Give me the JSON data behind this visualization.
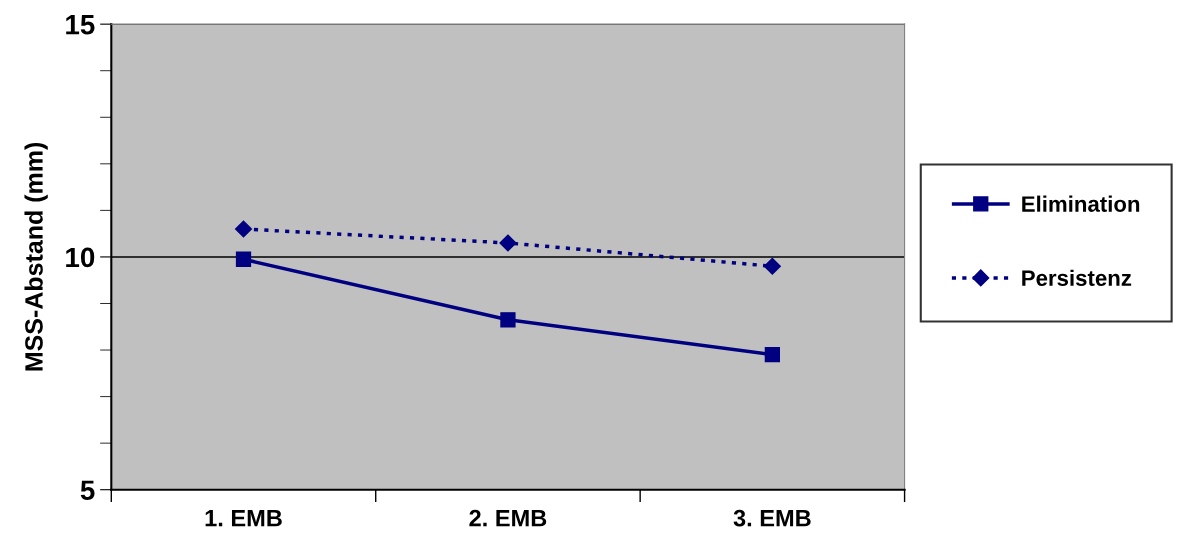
{
  "chart_data": {
    "type": "line",
    "ylabel": "MSS-Abstand (mm)",
    "categories": [
      "1. EMB",
      "2. EMB",
      "3. EMB"
    ],
    "series": [
      {
        "name": "Elimination",
        "color": "#000080",
        "values": [
          9.95,
          8.65,
          7.9
        ],
        "marker": "square",
        "line_style": "solid"
      },
      {
        "name": "Persistenz",
        "color": "#000080",
        "values": [
          10.6,
          10.3,
          9.8
        ],
        "marker": "diamond",
        "line_style": "dotted"
      }
    ],
    "ylim": [
      5,
      15
    ],
    "yticks": [
      5,
      10,
      15
    ],
    "grid": "y",
    "legend": "right"
  }
}
